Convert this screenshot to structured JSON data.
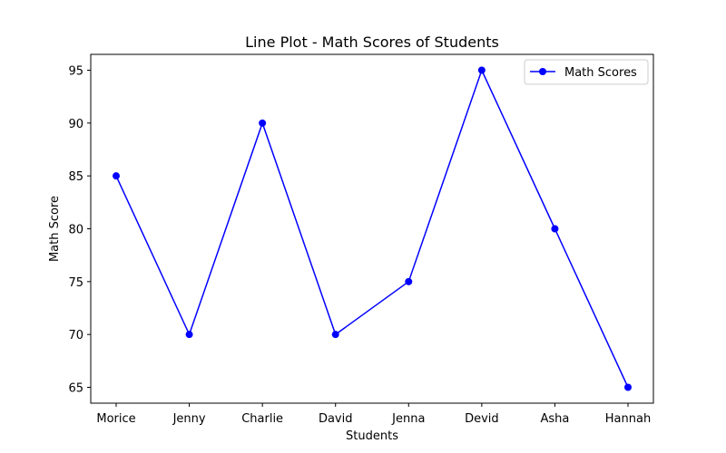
{
  "chart_data": {
    "type": "line",
    "title": "Line Plot - Math Scores of Students",
    "xlabel": "Students",
    "ylabel": "Math Score",
    "categories": [
      "Morice",
      "Jenny",
      "Charlie",
      "David",
      "Jenna",
      "Devid",
      "Asha",
      "Hannah"
    ],
    "series": [
      {
        "name": "Math Scores",
        "values": [
          85,
          70,
          90,
          70,
          75,
          95,
          80,
          65
        ],
        "color": "#0000ff",
        "marker": "circle"
      }
    ],
    "ylim": [
      63.5,
      96.5
    ],
    "yticks": [
      65,
      70,
      75,
      80,
      85,
      90,
      95
    ],
    "grid": false,
    "legend_position": "top-right"
  }
}
